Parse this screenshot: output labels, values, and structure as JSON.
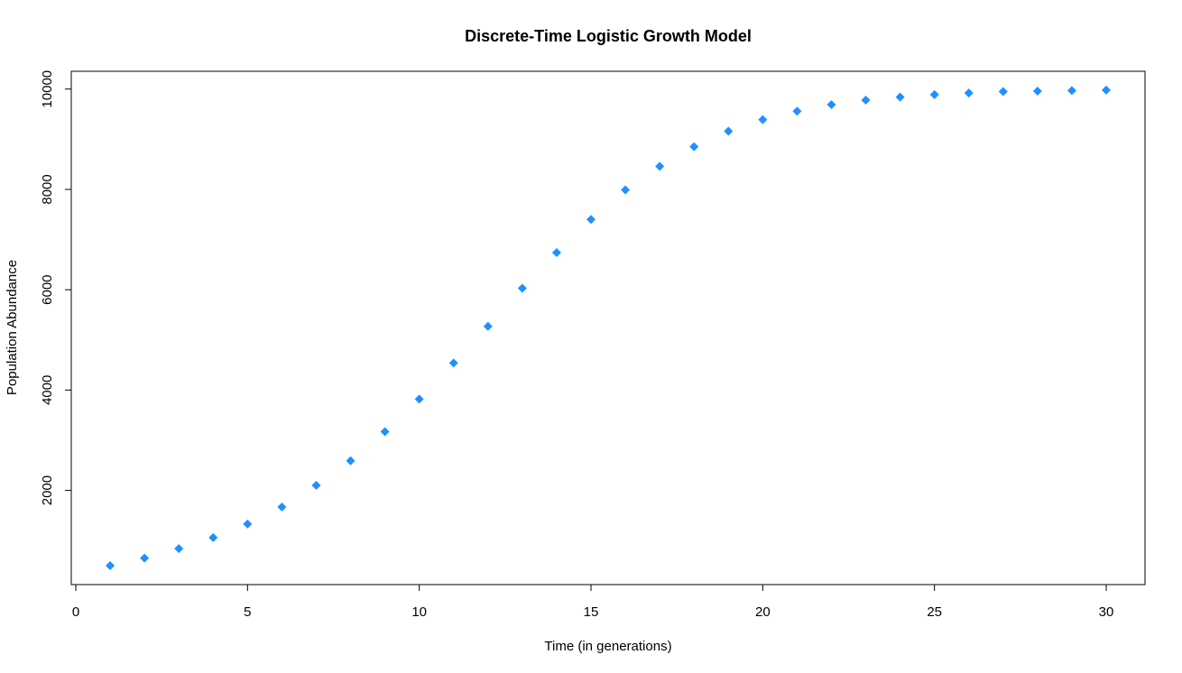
{
  "chart_data": {
    "type": "scatter",
    "title": "Discrete-Time Logistic Growth Model",
    "xlabel": "Time (in generations)",
    "ylabel": "Population Abundance",
    "xlim": [
      0,
      30
    ],
    "ylim": [
      500,
      9995
    ],
    "x_ticks": [
      0,
      5,
      10,
      15,
      20,
      25,
      30
    ],
    "y_ticks": [
      2000,
      4000,
      6000,
      8000,
      10000
    ],
    "x_tick_labels": [
      "0",
      "5",
      "10",
      "15",
      "20",
      "25",
      "30"
    ],
    "y_tick_labels": [
      "2000",
      "4000",
      "6000",
      "8000",
      "10000"
    ],
    "grid": false,
    "marker": "diamond",
    "marker_color": "#1E90FF",
    "series": [
      {
        "x": [
          1,
          2,
          3,
          4,
          5,
          6,
          7,
          8,
          9,
          10,
          11,
          12,
          13,
          14,
          15,
          16,
          17,
          18,
          19,
          20,
          21,
          22,
          23,
          24,
          25,
          26,
          27,
          28,
          29,
          30
        ],
        "y": [
          500,
          650,
          840,
          1060,
          1330,
          1670,
          2100,
          2590,
          3170,
          3820,
          4540,
          5270,
          6030,
          6740,
          7400,
          7990,
          8460,
          8850,
          9160,
          9390,
          9560,
          9690,
          9780,
          9840,
          9890,
          9920,
          9950,
          9960,
          9970,
          9980
        ]
      }
    ]
  }
}
